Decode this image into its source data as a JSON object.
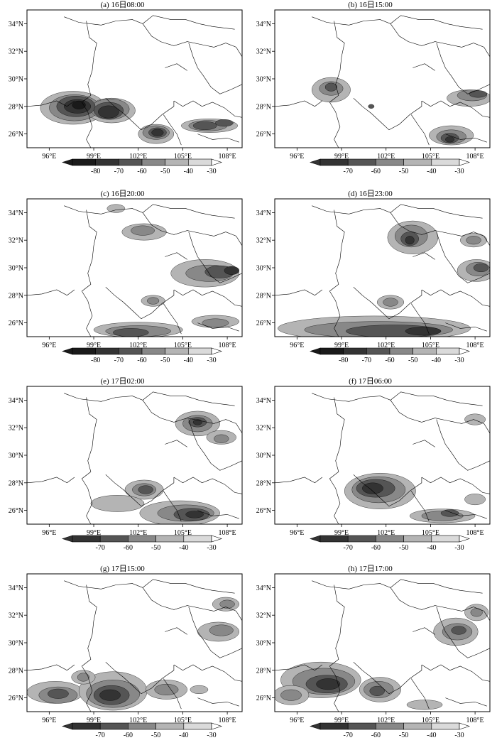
{
  "axes": {
    "x_ticks": [
      "96°E",
      "99°E",
      "102°E",
      "105°E",
      "108°E"
    ],
    "y_ticks": [
      "34°N",
      "32°N",
      "30°N",
      "28°N",
      "26°N"
    ]
  },
  "colors": {
    "lt_minus80": "#1a1a1a",
    "minus80_to_minus70": "#333333",
    "minus70_to_minus60": "#555555",
    "minus60_to_minus50": "#888888",
    "minus50_to_minus40": "#b4b4b4",
    "minus40_to_minus30": "#dadada",
    "ge_minus30": "#ffffff",
    "border": "#000000"
  },
  "panels": [
    {
      "title": "(a) 16日08:00",
      "colorbar": [
        "-80",
        "-70",
        "-60",
        "-50",
        "-40",
        "-30"
      ]
    },
    {
      "title": "(b) 16日15:00",
      "colorbar": [
        "-70",
        "-60",
        "-50",
        "-40",
        "-30"
      ]
    },
    {
      "title": "(c) 16日20:00",
      "colorbar": [
        "-80",
        "-70",
        "-60",
        "-50",
        "-40",
        "-30"
      ]
    },
    {
      "title": "(d) 16日23:00",
      "colorbar": [
        "-80",
        "-70",
        "-60",
        "-50",
        "-40",
        "-30"
      ]
    },
    {
      "title": "(e) 17日02:00",
      "colorbar": [
        "-70",
        "-60",
        "-50",
        "-40",
        "-30"
      ]
    },
    {
      "title": "(f) 17日06:00",
      "colorbar": [
        "-70",
        "-60",
        "-50",
        "-40",
        "-30"
      ]
    },
    {
      "title": "(g) 17日15:00",
      "colorbar": [
        "-70",
        "-60",
        "-50",
        "-40",
        "-30"
      ]
    },
    {
      "title": "(h) 17日17:00",
      "colorbar": [
        "-70",
        "-60",
        "-50",
        "-40",
        "-30"
      ]
    }
  ]
}
